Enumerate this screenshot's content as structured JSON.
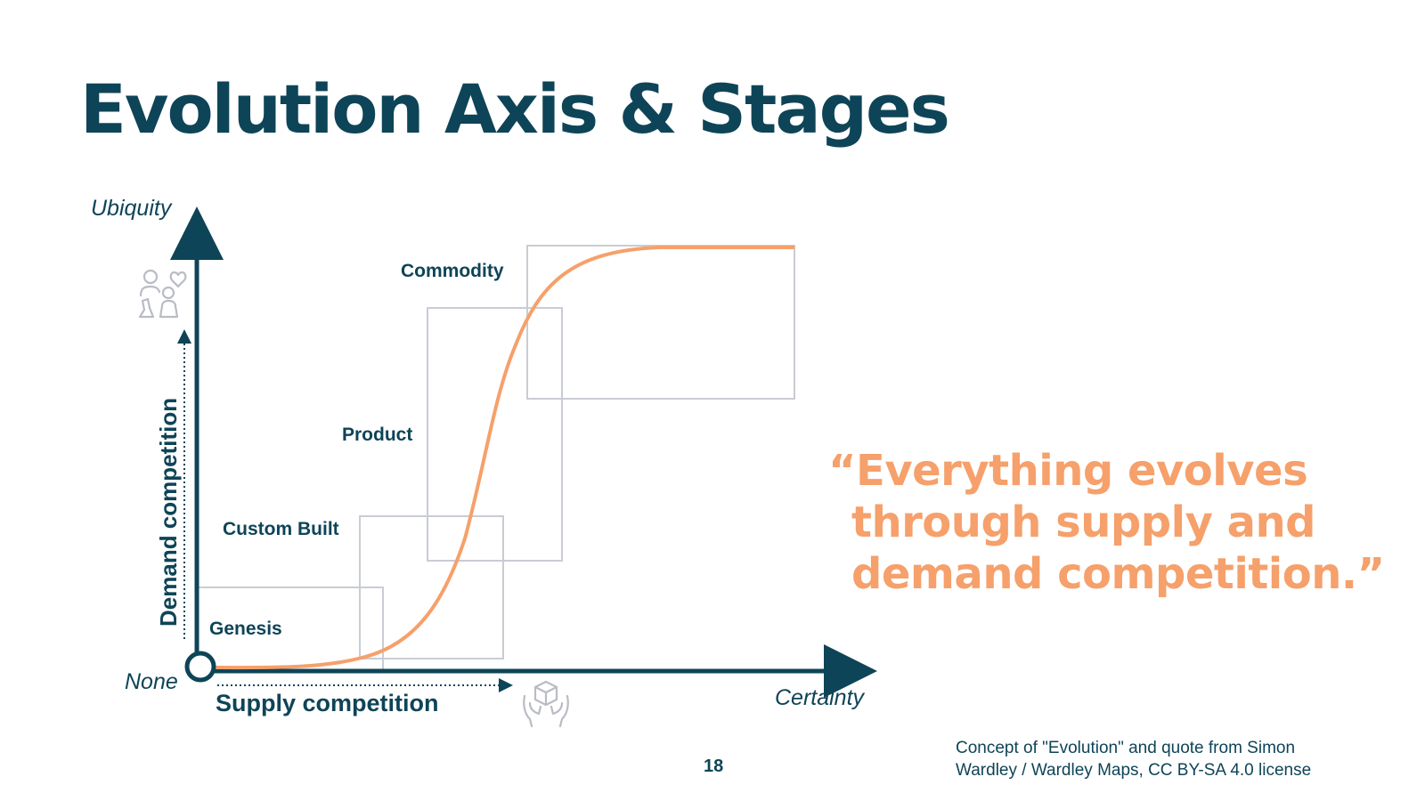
{
  "slide": {
    "title": "Evolution Axis & Stages",
    "quote_lines": [
      "“Everything evolves",
      "through supply and",
      "demand competition.”"
    ],
    "source_lines": [
      "Concept of \"Evolution\" and quote from Simon",
      "Wardley / Wardley Maps, CC BY-SA 4.0 license"
    ],
    "page_number": "18"
  },
  "diagram": {
    "y_axis_top_label": "Ubiquity",
    "origin_label": "None",
    "x_axis_end_label": "Certainty",
    "y_axis_title": "Demand competition",
    "x_axis_title": "Supply competition",
    "stages": [
      "Genesis",
      "Custom Built",
      "Product",
      "Commodity"
    ],
    "icons": [
      "people-heart-icon",
      "hands-box-icon"
    ]
  },
  "colors": {
    "navy": "#0e4457",
    "orange": "#f6a06b",
    "box_gray": "#c9ccd4",
    "icon_gray": "#b9bcc4"
  }
}
